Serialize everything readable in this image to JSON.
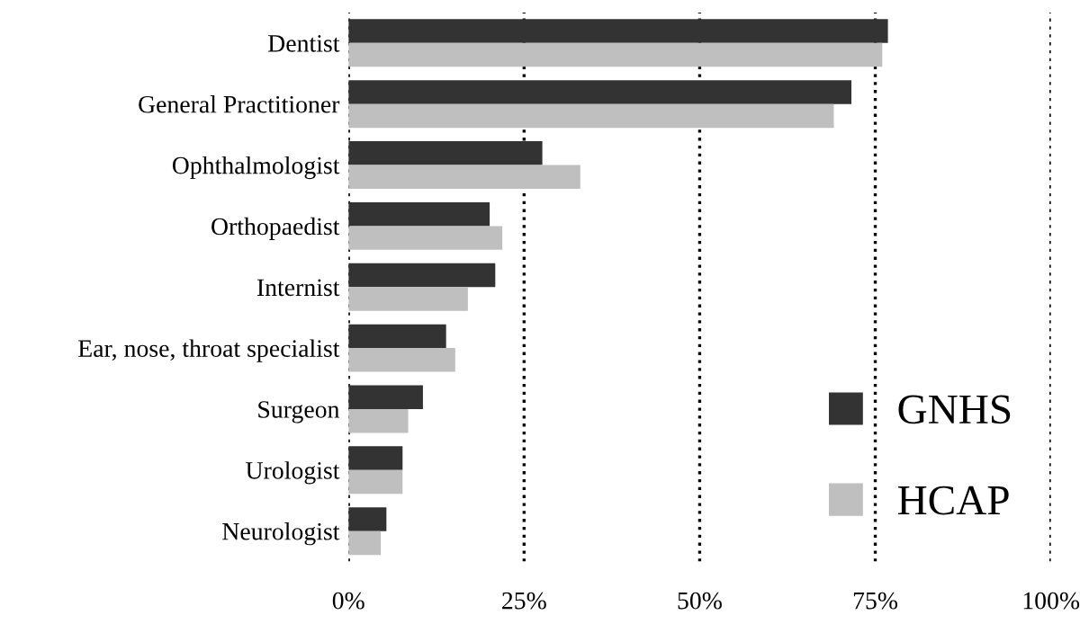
{
  "chart_data": {
    "type": "bar",
    "orientation": "horizontal",
    "categories": [
      "Dentist",
      "General Practitioner",
      "Ophthalmologist",
      "Orthopaedist",
      "Internist",
      "Ear, nose, throat specialist",
      "Surgeon",
      "Urologist",
      "Neurologist"
    ],
    "series": [
      {
        "name": "GNHS",
        "color": "#333333",
        "values": [
          76.8,
          71.6,
          27.6,
          20.1,
          20.9,
          13.9,
          10.6,
          7.7,
          5.4
        ]
      },
      {
        "name": "HCAP",
        "color": "#bfbfbf",
        "values": [
          76.0,
          69.1,
          33.0,
          21.9,
          17.0,
          15.2,
          8.5,
          7.7,
          4.6
        ]
      }
    ],
    "xlim": [
      0,
      100
    ],
    "xticks": [
      {
        "value": 0,
        "label": "0%"
      },
      {
        "value": 25,
        "label": "25%"
      },
      {
        "value": 50,
        "label": "50%"
      },
      {
        "value": 75,
        "label": "75%"
      },
      {
        "value": 100,
        "label": "100%"
      }
    ],
    "grid": "x",
    "line_style": "dotted",
    "legend": "bottom right"
  }
}
